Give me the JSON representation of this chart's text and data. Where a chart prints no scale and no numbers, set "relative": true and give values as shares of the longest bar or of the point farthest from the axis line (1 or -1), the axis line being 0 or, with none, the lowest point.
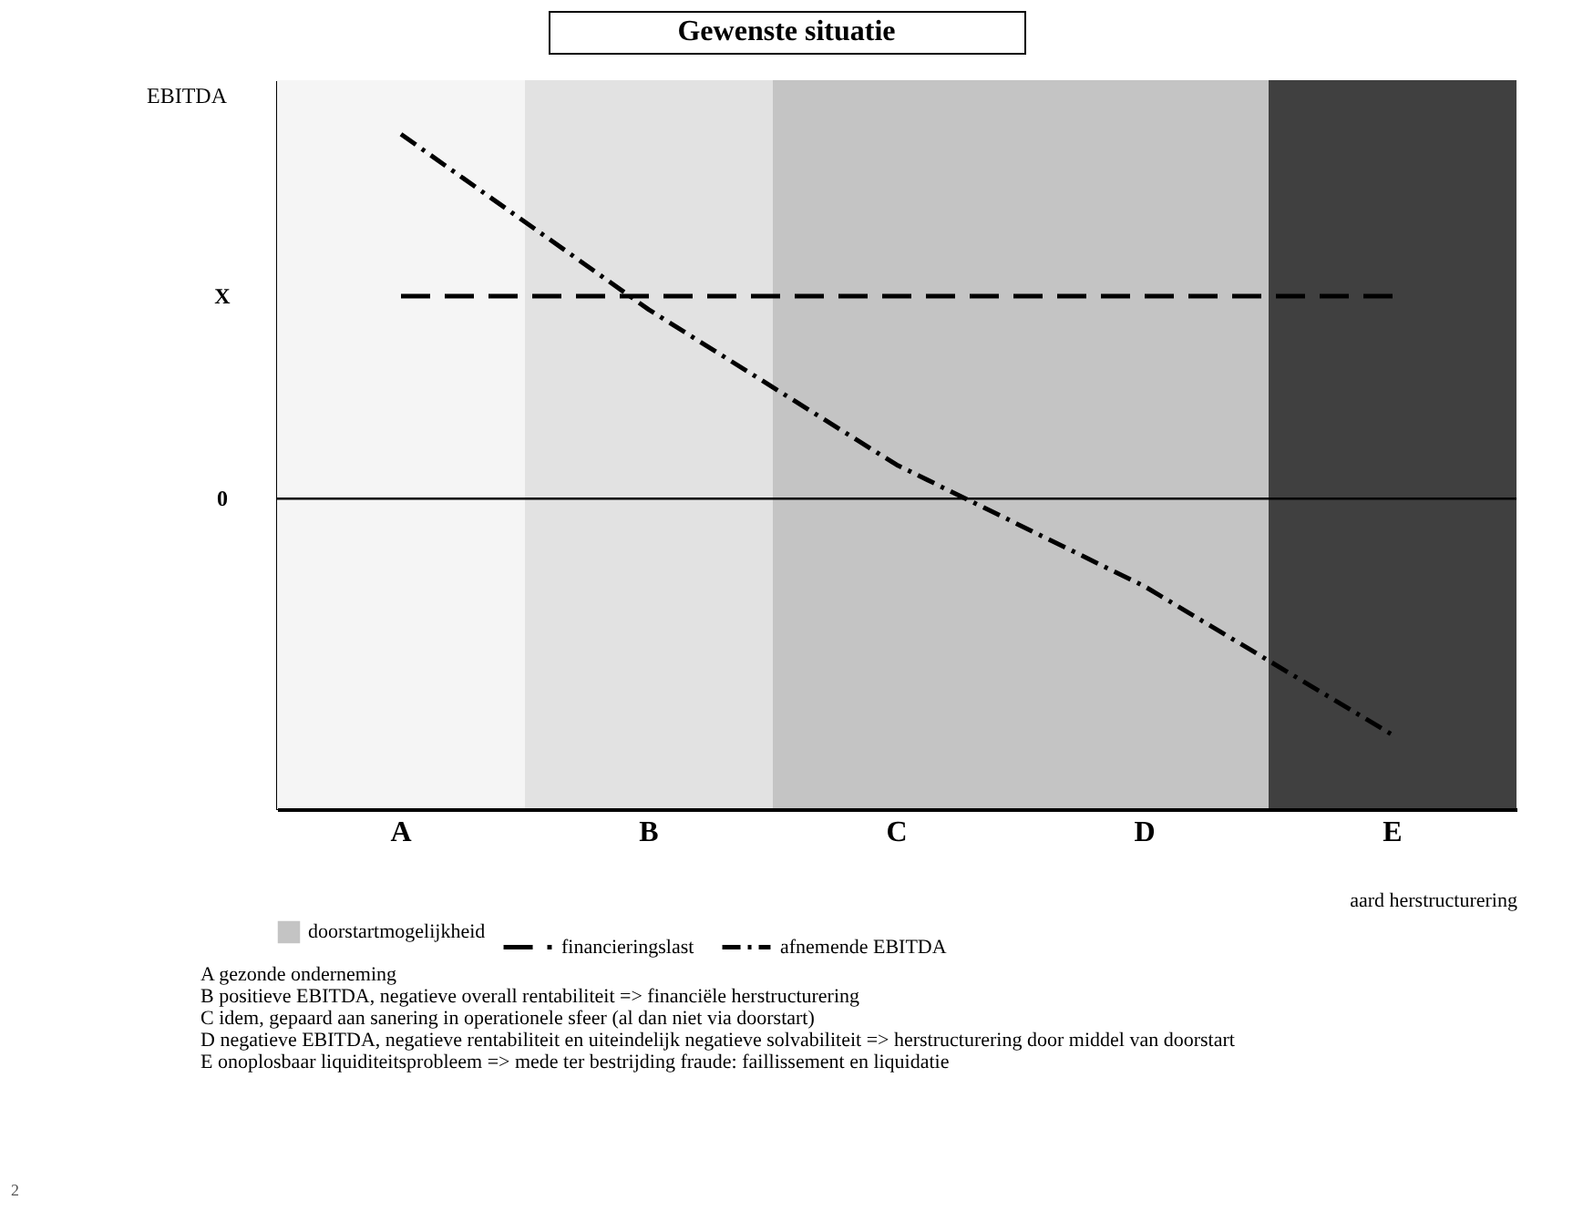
{
  "chart_data": {
    "type": "line",
    "title": "Gewenste situatie",
    "ylabel": "EBITDA",
    "xlabel": "aard herstructurering",
    "legend": "bottom",
    "relative": true,
    "categories": [
      "A",
      "B",
      "C",
      "D",
      "E"
    ],
    "series": [
      {
        "name": "financieringslast",
        "color": "#000000",
        "line_style": "dashed",
        "values": [
          0.76,
          0.76,
          0.76,
          0.76,
          0.76
        ]
      },
      {
        "name": "afnemende EBITDA",
        "color": "#000000",
        "line_style": "dotted",
        "values": [
          1,
          0.74,
          0.51,
          0.33,
          0.11
        ]
      }
    ],
    "bands": [
      {
        "axis": "x",
        "from": "A",
        "to": "A",
        "color": "#f5f5f5"
      },
      {
        "axis": "x",
        "from": "B",
        "to": "B",
        "color": "#e2e2e2"
      },
      {
        "axis": "x",
        "from": "C",
        "to": "D",
        "label": "doorstartmogelijkheid",
        "color": "#c4c4c4"
      },
      {
        "axis": "x",
        "from": "E",
        "to": "E",
        "color": "#404040"
      }
    ],
    "ref_lines": [
      {
        "axis": "y",
        "value": 0.46,
        "label": "0",
        "color": "#000000",
        "line_style": "solid"
      }
    ],
    "annotations": [
      "X",
      "A gezonde onderneming",
      "B positieve EBITDA, negatieve overall rentabiliteit => financiële herstructurering",
      "C idem, gepaard aan sanering in operationele sfeer (al dan niet via doorstart)",
      "D negatieve EBITDA, negatieve rentabiliteit en uiteindelijk negatieve solvabiliteit => herstructurering door middel van doorstart",
      "E onoplosbaar liquiditeitsprobleem => mede ter bestrijding fraude: faillissement en liquidatie",
      "2"
    ]
  }
}
